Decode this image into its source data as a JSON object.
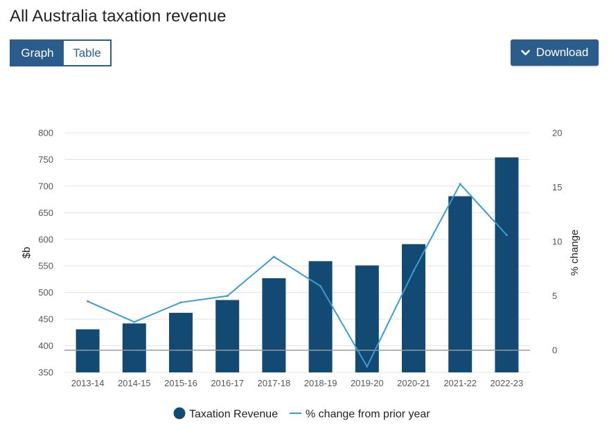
{
  "page": {
    "title": "All Australia taxation revenue"
  },
  "view_toggle": {
    "graph_label": "Graph",
    "table_label": "Table",
    "selected": "Graph"
  },
  "download": {
    "label": "Download",
    "icon": "chevron-down-icon"
  },
  "colors": {
    "accent": "#2b5d8c",
    "bar": "#134a74",
    "line": "#3a9bd5",
    "grid": "#e3e3e3",
    "baseline": "#999999"
  },
  "chart_data": {
    "type": "bar",
    "categories": [
      "2013-14",
      "2014-15",
      "2015-16",
      "2016-17",
      "2017-18",
      "2018-19",
      "2019-20",
      "2020-21",
      "2021-22",
      "2022-23"
    ],
    "series": [
      {
        "name": "Taxation Revenue",
        "type": "bar",
        "axis": "left",
        "values": [
          431,
          442,
          462,
          486,
          527,
          559,
          551,
          591,
          681,
          754
        ]
      },
      {
        "name": "% change from prior year",
        "type": "line",
        "axis": "right",
        "values": [
          4.5,
          2.6,
          4.4,
          5.0,
          8.6,
          5.9,
          -1.5,
          7.3,
          15.3,
          10.6
        ]
      }
    ],
    "ylabel": "$b",
    "y2label": "% change",
    "ylim": [
      350,
      800
    ],
    "y_ticks": [
      350,
      400,
      450,
      500,
      550,
      600,
      650,
      700,
      750,
      800
    ],
    "y2lim": [
      -2,
      20
    ],
    "y2_ticks": [
      0,
      5,
      10,
      15,
      20
    ],
    "grid": true,
    "legend_position": "bottom-center"
  }
}
